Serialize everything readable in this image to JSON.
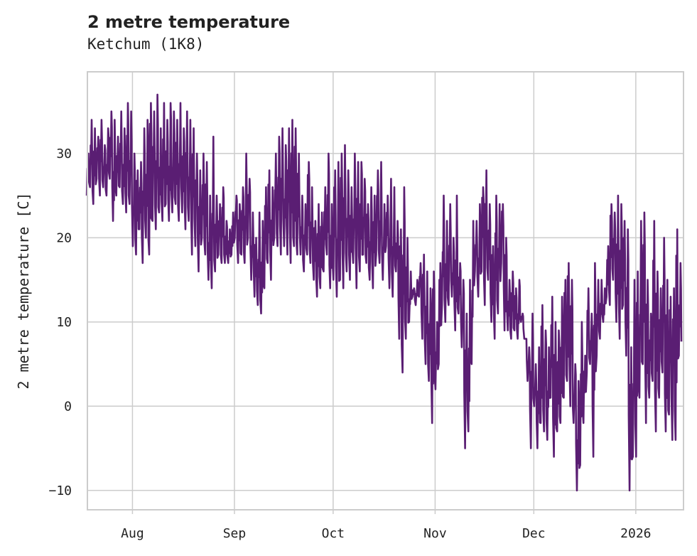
{
  "chart_data": {
    "type": "line",
    "title": "2 metre temperature",
    "subtitle": "Ketchum (1K8)",
    "xlabel": "",
    "ylabel": "2 metre temperature [C]",
    "x_unit": "days since 2025-07-18",
    "xlim": [
      0.3,
      181.5
    ],
    "ylim": [
      -12.3,
      39.7
    ],
    "grid": true,
    "color": "#5a1e73",
    "x_ticks": [
      {
        "label": "Aug",
        "value": 14
      },
      {
        "label": "Sep",
        "value": 45
      },
      {
        "label": "Oct",
        "value": 75
      },
      {
        "label": "Nov",
        "value": 106
      },
      {
        "label": "Dec",
        "value": 136
      },
      {
        "label": "2026",
        "value": 167
      }
    ],
    "y_ticks": [
      {
        "label": "30",
        "value": 30
      },
      {
        "label": "20",
        "value": 20
      },
      {
        "label": "10",
        "value": 10
      },
      {
        "label": "0",
        "value": 0
      },
      {
        "label": "−10",
        "value": -10
      }
    ],
    "series": [
      {
        "name": "2 metre temperature",
        "daily_max": [
          30,
          34,
          33,
          32,
          34,
          31,
          33,
          35,
          34,
          32,
          35,
          33,
          36,
          35,
          30,
          28,
          29,
          33,
          34,
          36,
          35,
          37,
          33,
          36,
          34,
          36,
          35,
          34,
          36,
          33,
          35,
          34,
          33,
          30,
          28,
          30,
          29,
          25,
          32,
          25,
          24,
          26,
          22,
          21,
          23,
          25,
          24,
          26,
          30,
          27,
          23,
          20,
          23,
          22,
          26,
          28,
          26,
          30,
          32,
          33,
          31,
          33,
          34,
          33,
          30,
          25,
          24,
          29,
          26,
          22,
          24,
          23,
          26,
          30,
          24,
          28,
          29,
          30,
          31,
          28,
          26,
          30,
          29,
          29,
          27,
          24,
          26,
          25,
          28,
          29,
          24,
          25,
          27,
          26,
          22,
          21,
          26,
          20,
          16,
          14,
          15,
          17,
          18,
          16,
          14,
          16,
          10,
          17,
          25,
          22,
          24,
          20,
          25,
          17,
          15,
          11,
          15,
          22,
          22,
          24,
          26,
          28,
          24,
          19,
          25,
          24,
          24,
          20,
          15,
          16,
          14,
          15,
          11,
          8,
          7,
          11,
          5,
          7,
          12,
          9,
          7,
          13,
          10,
          9,
          13,
          15,
          17,
          15,
          5,
          3,
          10,
          6,
          14,
          11,
          17,
          15,
          15,
          14,
          19,
          24,
          23,
          25,
          24,
          22,
          21,
          7,
          15,
          16,
          22,
          23,
          15,
          11,
          22,
          16,
          14,
          20,
          15,
          13,
          14,
          21,
          17
        ],
        "daily_min": [
          25,
          26,
          24,
          27,
          25,
          26,
          25,
          27,
          22,
          25,
          26,
          24,
          23,
          24,
          19,
          18,
          21,
          17,
          20,
          18,
          22,
          21,
          23,
          22,
          24,
          22,
          23,
          24,
          22,
          23,
          21,
          22,
          18,
          19,
          16,
          20,
          18,
          15,
          14,
          16,
          18,
          17,
          17,
          17,
          18,
          20,
          17,
          18,
          17,
          20,
          15,
          13,
          12,
          11,
          14,
          17,
          15,
          20,
          19,
          18,
          19,
          18,
          17,
          19,
          18,
          18,
          16,
          18,
          17,
          15,
          13,
          14,
          16,
          18,
          14,
          15,
          13,
          15,
          14,
          16,
          15,
          17,
          14,
          16,
          18,
          17,
          15,
          14,
          18,
          17,
          15,
          19,
          14,
          13,
          16,
          8,
          4,
          8,
          10,
          13,
          12,
          13,
          8,
          5,
          3,
          -2,
          2,
          5,
          12,
          10,
          12,
          13,
          9,
          11,
          7,
          -5,
          -3,
          5,
          16,
          13,
          16,
          12,
          15,
          10,
          8,
          11,
          17,
          9,
          9,
          8,
          9,
          8,
          10,
          8,
          3,
          -5,
          0,
          -5,
          -2,
          -3,
          -4,
          1,
          -6,
          -3,
          -2,
          1,
          3,
          0,
          -2,
          -10,
          -7,
          -2,
          4,
          5,
          -6,
          6,
          8,
          10,
          13,
          12,
          15,
          10,
          8,
          12,
          6,
          -10,
          -6,
          -6,
          1,
          5,
          -2,
          1,
          3,
          -3,
          1,
          4,
          -3,
          -1,
          -4,
          -4,
          6
        ]
      }
    ]
  }
}
